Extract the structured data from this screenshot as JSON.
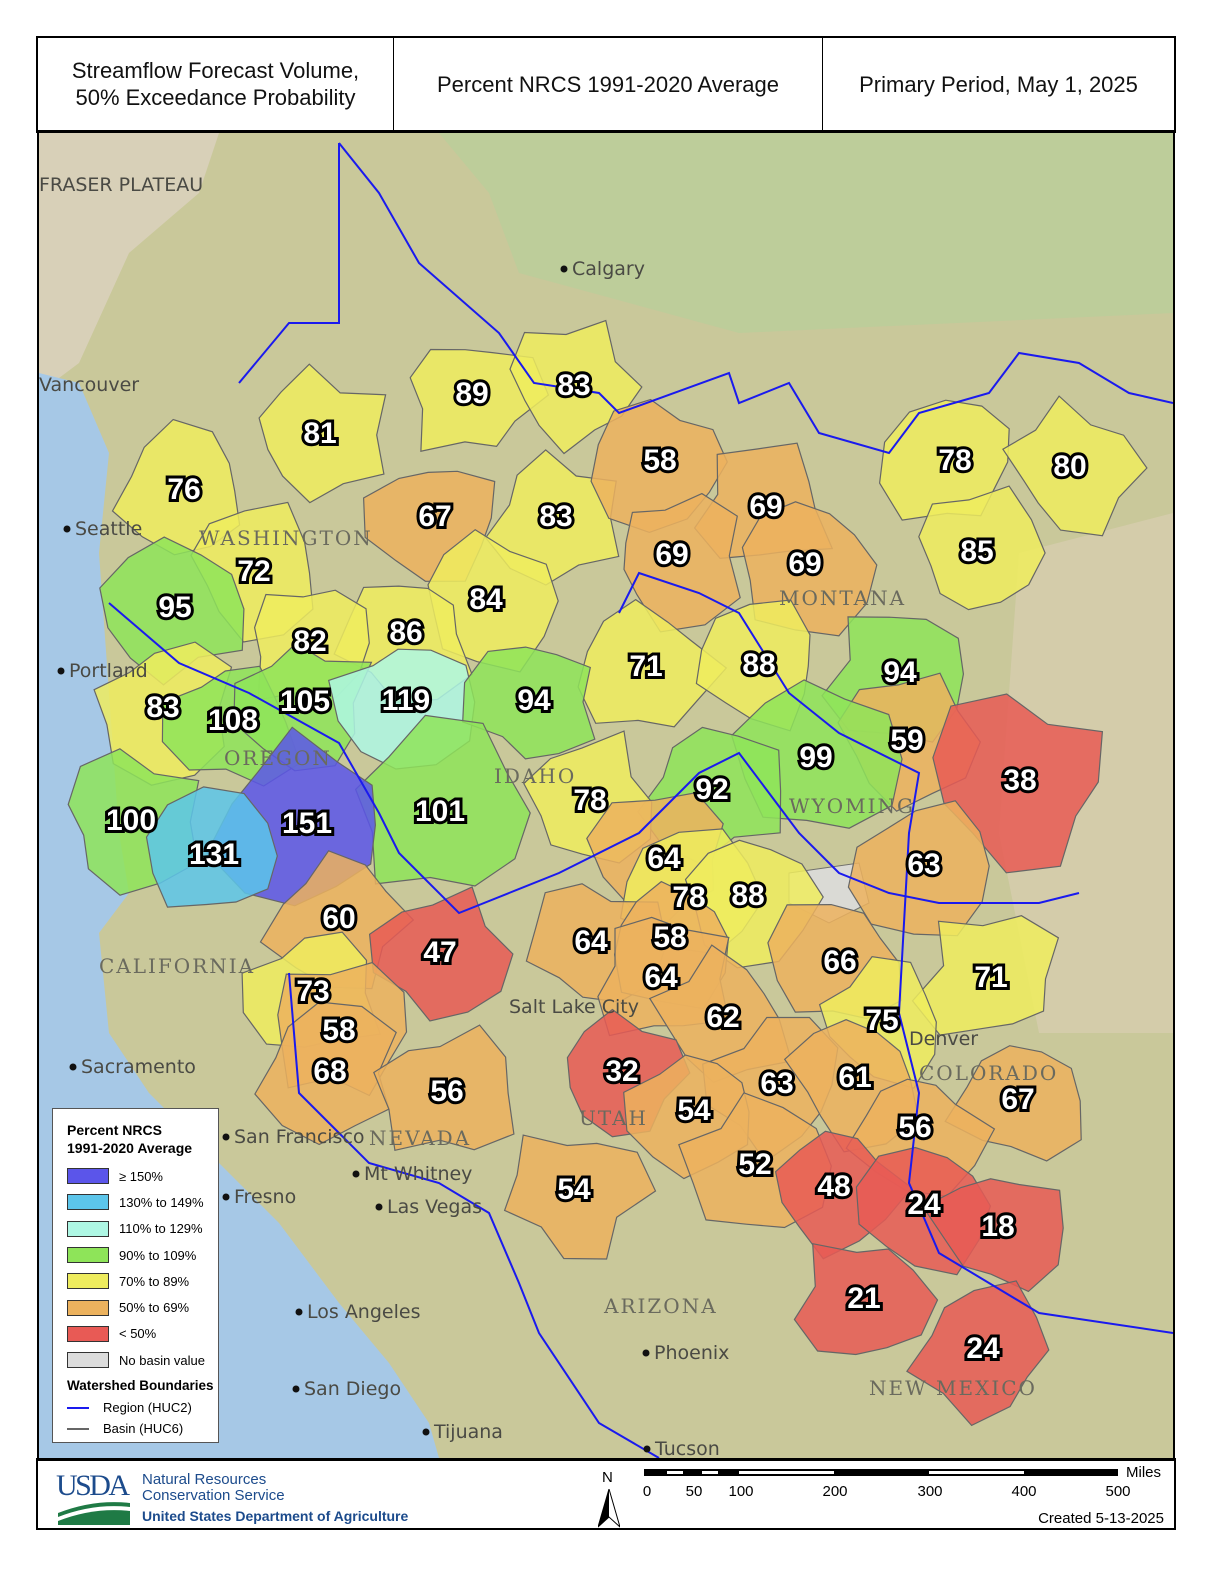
{
  "header": {
    "title_line1": "Streamflow Forecast Volume,",
    "title_line2": "50% Exceedance Probability",
    "subtitle": "Percent NRCS 1991-2020 Average",
    "period": "Primary Period, May 1, 2025"
  },
  "legend": {
    "title_line1": "Percent NRCS",
    "title_line2": "1991-2020 Average",
    "classes": [
      {
        "label": "≥ 150%",
        "color": "#5b55ea"
      },
      {
        "label": "130% to 149%",
        "color": "#5cc5ea"
      },
      {
        "label": "110% to 129%",
        "color": "#aef7e4"
      },
      {
        "label": "90% to 109%",
        "color": "#8ee459"
      },
      {
        "label": "70% to 89%",
        "color": "#eeec5e"
      },
      {
        "label": "50% to 69%",
        "color": "#ecb25e"
      },
      {
        "label": "< 50%",
        "color": "#e85a55"
      },
      {
        "label": "No basin value",
        "color": "#dcdcdc"
      }
    ],
    "boundaries_title": "Watershed Boundaries",
    "boundaries": [
      {
        "label": "Region (HUC2)",
        "color": "#1a1aee"
      },
      {
        "label": "Basin (HUC6)",
        "color": "#666666"
      }
    ]
  },
  "basins": [
    89,
    83,
    81,
    76,
    67,
    83,
    58,
    69,
    69,
    69,
    78,
    80,
    85,
    72,
    95,
    84,
    86,
    82,
    71,
    88,
    94,
    83,
    108,
    105,
    119,
    94,
    59,
    38,
    99,
    92,
    78,
    101,
    151,
    100,
    131,
    64,
    63,
    78,
    88,
    60,
    47,
    64,
    58,
    66,
    71,
    73,
    64,
    58,
    62,
    75,
    68,
    32,
    56,
    63,
    61,
    67,
    54,
    56,
    52,
    48,
    54,
    24,
    18,
    21,
    24
  ],
  "places": [
    "Calgary",
    "Vancouver",
    "Seattle",
    "Portland",
    "Sacramento",
    "San Francisco",
    "Fresno",
    "Mt Whitney",
    "Las Vegas",
    "Los Angeles",
    "San Diego",
    "Tijuana",
    "Phoenix",
    "Tucson",
    "Salt Lake City",
    "Denver",
    "FRASER PLATEAU"
  ],
  "states": [
    "WASHINGTON",
    "OREGON",
    "IDAHO",
    "MONTANA",
    "WYOMING",
    "CALIFORNIA",
    "NEVADA",
    "UTAH",
    "COLORADO",
    "ARIZONA",
    "NEW MEXICO"
  ],
  "footer": {
    "agency_line1": "Natural Resources",
    "agency_line2": "Conservation Service",
    "department": "United States Department of Agriculture",
    "logo_text": "USDA",
    "north": "N",
    "scale_unit": "Miles",
    "scale_ticks": [
      "0",
      "50",
      "100",
      "200",
      "300",
      "400",
      "500"
    ],
    "created": "Created 5-13-2025"
  }
}
